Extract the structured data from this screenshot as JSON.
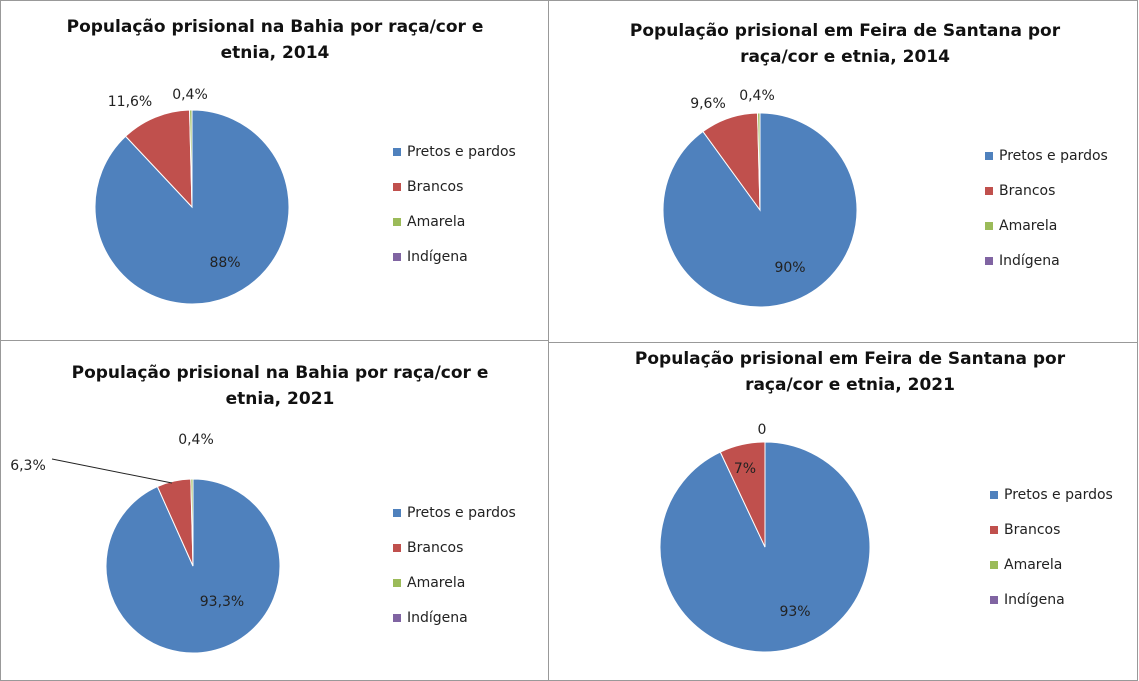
{
  "chart_data": [
    {
      "type": "pie",
      "title": "População prisional na Bahia por raça/cor e etnia, 2014",
      "categories": [
        "Pretos e pardos",
        "Brancos",
        "Amarela",
        "Indígena"
      ],
      "values": [
        88,
        11.6,
        0.4,
        0
      ],
      "value_labels": [
        "88%",
        "11,6%",
        "0,4%",
        null
      ],
      "colors": [
        "#4f81bd",
        "#c0504d",
        "#9bbb59",
        "#8064a2"
      ]
    },
    {
      "type": "pie",
      "title": "População prisional em Feira de Santana por raça/cor e etnia, 2014",
      "categories": [
        "Pretos e pardos",
        "Brancos",
        "Amarela",
        "Indígena"
      ],
      "values": [
        90,
        9.6,
        0.4,
        0
      ],
      "value_labels": [
        "90%",
        "9,6%",
        "0,4%",
        null
      ],
      "colors": [
        "#4f81bd",
        "#c0504d",
        "#9bbb59",
        "#8064a2"
      ]
    },
    {
      "type": "pie",
      "title": "População prisional na Bahia por raça/cor e etnia, 2021",
      "categories": [
        "Pretos e pardos",
        "Brancos",
        "Amarela",
        "Indígena"
      ],
      "values": [
        93.3,
        6.3,
        0.4,
        0
      ],
      "value_labels": [
        "93,3%",
        "6,3%",
        "0,4%",
        null
      ],
      "colors": [
        "#4f81bd",
        "#c0504d",
        "#9bbb59",
        "#8064a2"
      ]
    },
    {
      "type": "pie",
      "title": "População prisional em Feira de Santana por raça/cor e etnia, 2021",
      "categories": [
        "Pretos e pardos",
        "Brancos",
        "Amarela",
        "Indígena"
      ],
      "values": [
        93,
        7,
        0,
        0
      ],
      "value_labels": [
        "93%",
        "7%",
        "0",
        null
      ],
      "colors": [
        "#4f81bd",
        "#c0504d",
        "#9bbb59",
        "#8064a2"
      ]
    }
  ]
}
